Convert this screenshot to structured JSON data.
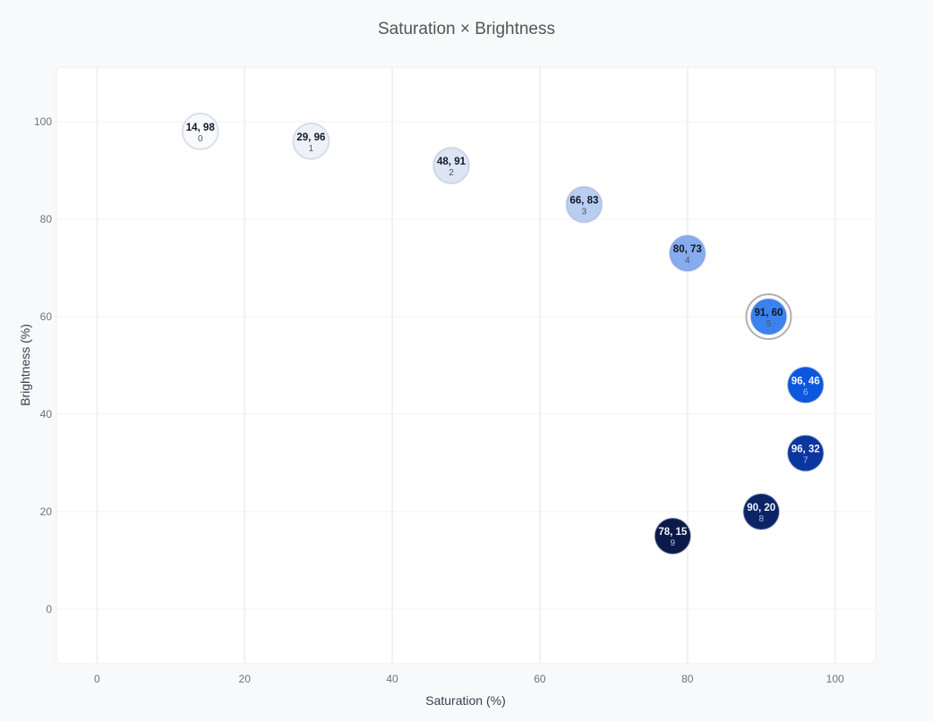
{
  "chart_data": {
    "type": "scatter",
    "title": "Saturation × Brightness",
    "xlabel": "Saturation (%)",
    "ylabel": "Brightness (%)",
    "xlim": [
      -5.5,
      105.5
    ],
    "ylim": [
      -11.2,
      111.2
    ],
    "xticks": [
      0,
      20,
      40,
      60,
      80,
      100
    ],
    "yticks": [
      0,
      20,
      40,
      60,
      80,
      100
    ],
    "grid": true,
    "points": [
      {
        "index": "0",
        "x": 14,
        "y": 98,
        "label": "14, 98",
        "color": "#f8fafc"
      },
      {
        "index": "1",
        "x": 29,
        "y": 96,
        "label": "29, 96",
        "color": "#eef2f8"
      },
      {
        "index": "2",
        "x": 48,
        "y": 91,
        "label": "48, 91",
        "color": "#dde5f5"
      },
      {
        "index": "3",
        "x": 66,
        "y": 83,
        "label": "66, 83",
        "color": "#b9cdf0"
      },
      {
        "index": "4",
        "x": 80,
        "y": 73,
        "label": "80, 73",
        "color": "#86abef"
      },
      {
        "index": "5",
        "x": 91,
        "y": 60,
        "label": "91, 60",
        "color": "#3b82f0",
        "selected": true
      },
      {
        "index": "6",
        "x": 96,
        "y": 46,
        "label": "96, 46",
        "color": "#0b57e0"
      },
      {
        "index": "7",
        "x": 96,
        "y": 32,
        "label": "96, 32",
        "color": "#0b36a0"
      },
      {
        "index": "8",
        "x": 90,
        "y": 20,
        "label": "90, 20",
        "color": "#0a2466"
      },
      {
        "index": "9",
        "x": 78,
        "y": 15,
        "label": "78, 15",
        "color": "#0b1a48"
      }
    ]
  }
}
